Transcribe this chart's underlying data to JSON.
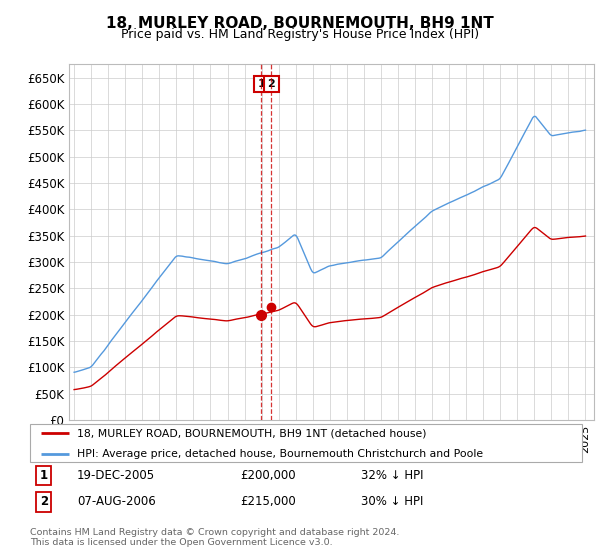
{
  "title": "18, MURLEY ROAD, BOURNEMOUTH, BH9 1NT",
  "subtitle": "Price paid vs. HM Land Registry's House Price Index (HPI)",
  "ylim": [
    0,
    675000
  ],
  "xlim_start": 1994.7,
  "xlim_end": 2025.5,
  "legend_line1": "18, MURLEY ROAD, BOURNEMOUTH, BH9 1NT (detached house)",
  "legend_line2": "HPI: Average price, detached house, Bournemouth Christchurch and Poole",
  "sale1_label": "1",
  "sale1_date": "19-DEC-2005",
  "sale1_price": "£200,000",
  "sale1_hpi": "32% ↓ HPI",
  "sale2_label": "2",
  "sale2_date": "07-AUG-2006",
  "sale2_price": "£215,000",
  "sale2_hpi": "30% ↓ HPI",
  "footer": "Contains HM Land Registry data © Crown copyright and database right 2024.\nThis data is licensed under the Open Government Licence v3.0.",
  "red_color": "#cc0000",
  "blue_color": "#5599dd",
  "sale1_x": 2005.97,
  "sale2_x": 2006.58,
  "sale1_y": 200000,
  "sale2_y": 215000
}
